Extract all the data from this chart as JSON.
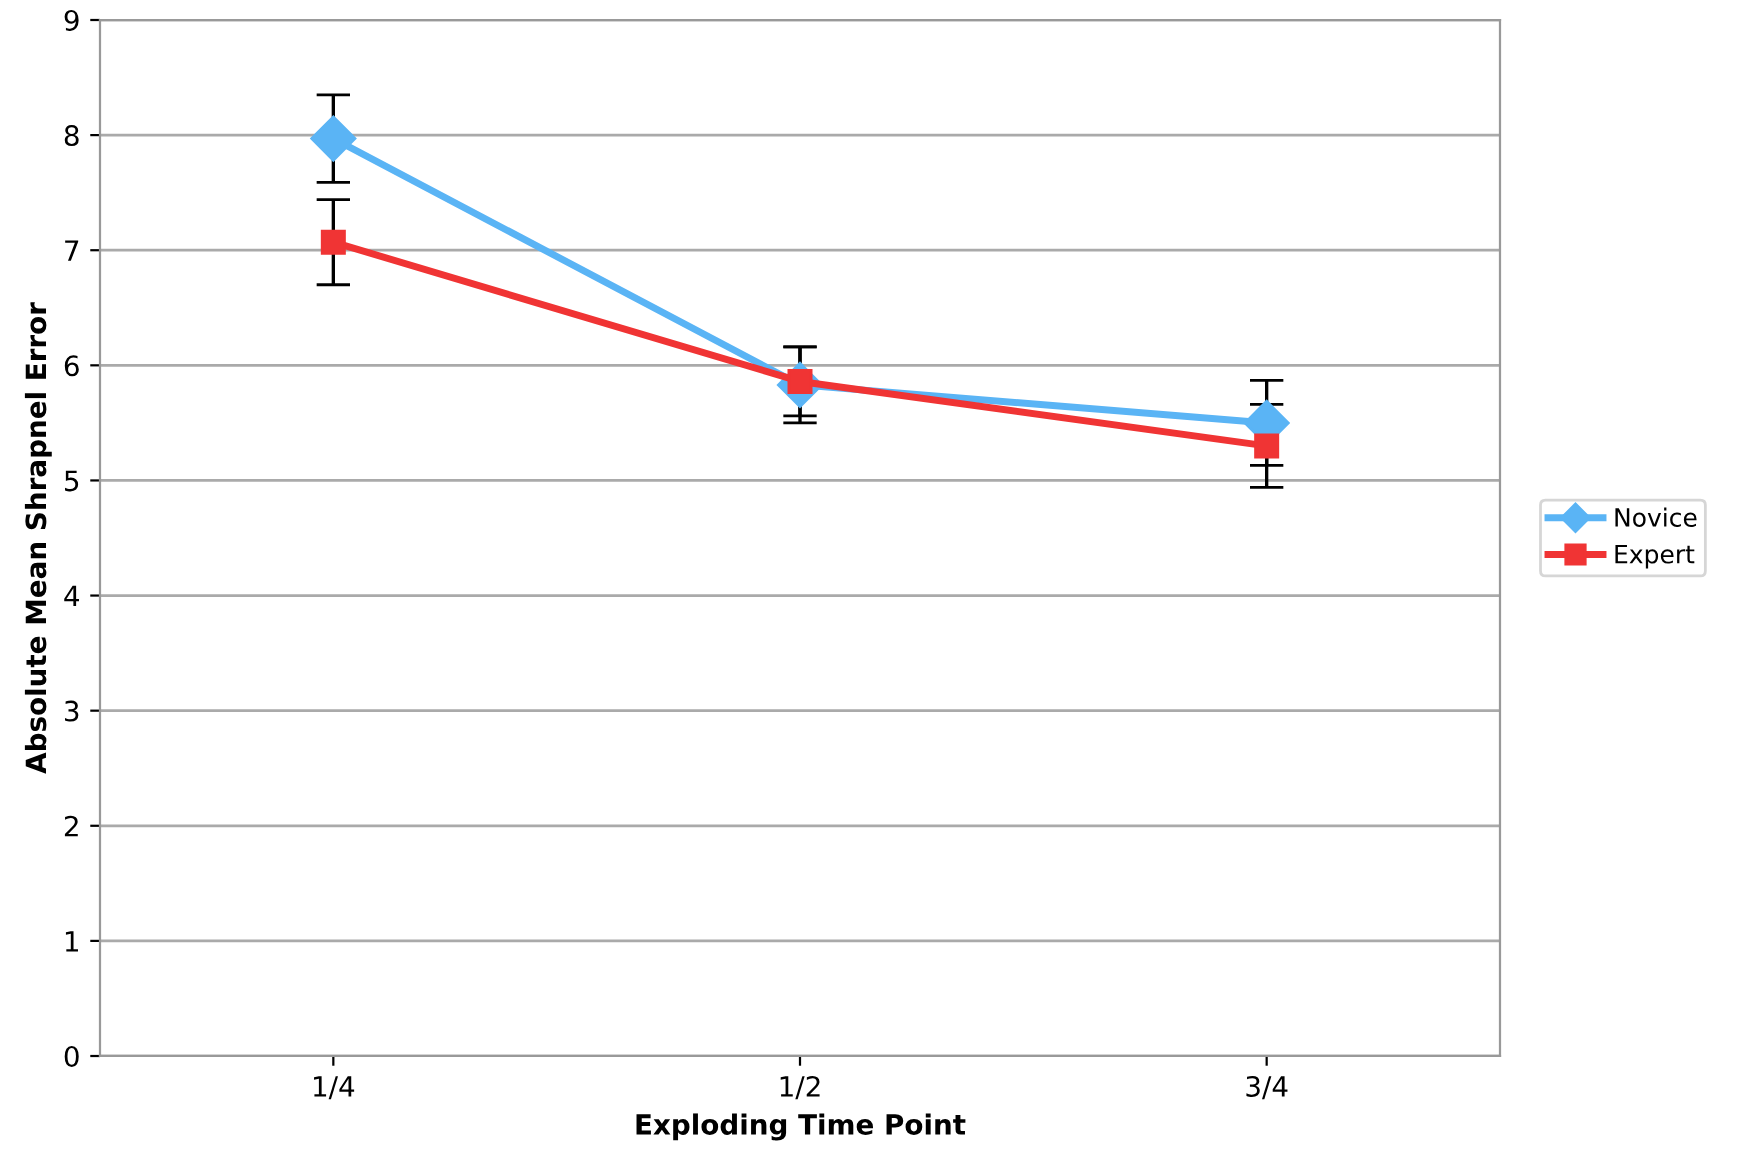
{
  "chart_data": {
    "type": "line",
    "xlabel": "Exploding Time Point",
    "ylabel": "Absolute Mean Shrapnel Error",
    "categories": [
      "1/4",
      "1/2",
      "3/4"
    ],
    "series": [
      {
        "name": "Novice",
        "color": "#5ab4f5",
        "marker": "diamond",
        "values": [
          7.97,
          5.83,
          5.5
        ],
        "errors": [
          0.38,
          0.33,
          0.37
        ]
      },
      {
        "name": "Expert",
        "color": "#f03434",
        "marker": "square",
        "values": [
          7.07,
          5.86,
          5.3
        ],
        "errors": [
          0.37,
          0.3,
          0.36
        ]
      }
    ],
    "ylim": [
      0,
      9
    ],
    "yticks": [
      0,
      1,
      2,
      3,
      4,
      5,
      6,
      7,
      8,
      9
    ],
    "grid": "y",
    "legend": "right",
    "line_style": "solid"
  }
}
